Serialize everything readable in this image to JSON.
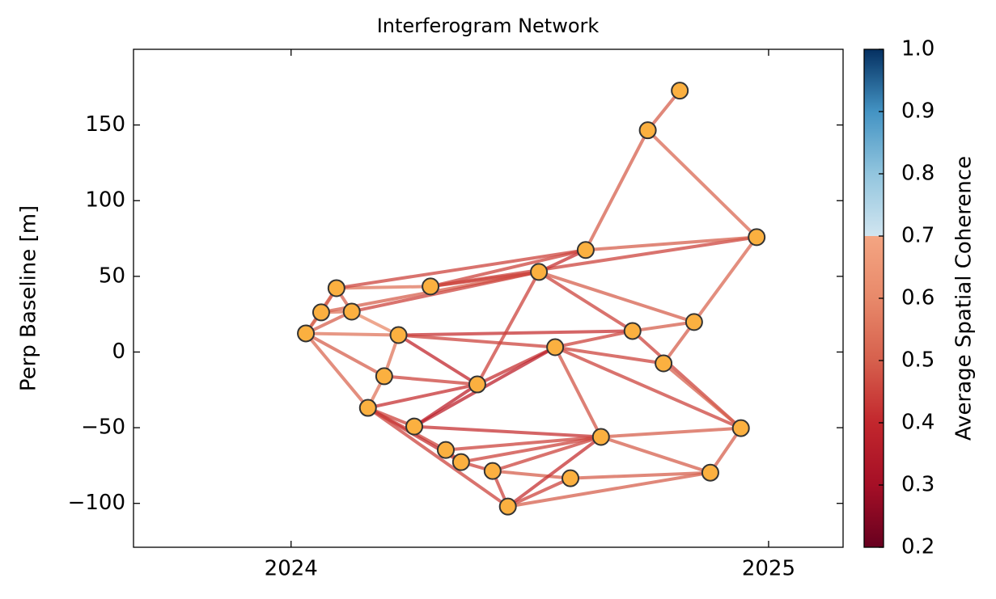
{
  "chart_data": {
    "type": "network",
    "title": "Interferogram Network",
    "y_label": "Perp Baseline [m]",
    "x": [
      2024.031,
      2024.063,
      2024.095,
      2024.127,
      2024.161,
      2024.195,
      2024.225,
      2024.258,
      2024.292,
      2024.324,
      2024.356,
      2024.39,
      2024.422,
      2024.454,
      2024.519,
      2024.553,
      2024.585,
      2024.617,
      2024.649,
      2024.715,
      2024.747,
      2024.78,
      2024.814,
      2024.844,
      2024.878,
      2024.942,
      2024.975
    ],
    "y": [
      12.3,
      26.2,
      42.2,
      26.7,
      -36.9,
      -16.0,
      11.2,
      -49.2,
      43.3,
      -64.7,
      -72.7,
      -21.4,
      -78.6,
      -102.1,
      52.9,
      3.2,
      -83.4,
      67.4,
      -56.1,
      13.9,
      146.5,
      -7.5,
      172.7,
      19.8,
      -79.7,
      -50.3,
      75.9
    ],
    "edges": [
      [
        0,
        1
      ],
      [
        0,
        2
      ],
      [
        0,
        3
      ],
      [
        0,
        6
      ],
      [
        0,
        4
      ],
      [
        0,
        5
      ],
      [
        1,
        3
      ],
      [
        1,
        2
      ],
      [
        1,
        14
      ],
      [
        3,
        14
      ],
      [
        2,
        8
      ],
      [
        2,
        17
      ],
      [
        2,
        3
      ],
      [
        3,
        6
      ],
      [
        6,
        5
      ],
      [
        6,
        19
      ],
      [
        6,
        11
      ],
      [
        6,
        15
      ],
      [
        5,
        11
      ],
      [
        4,
        5
      ],
      [
        4,
        11
      ],
      [
        4,
        7
      ],
      [
        4,
        9
      ],
      [
        4,
        10
      ],
      [
        4,
        13
      ],
      [
        8,
        14
      ],
      [
        8,
        17
      ],
      [
        8,
        26
      ],
      [
        14,
        17
      ],
      [
        14,
        11
      ],
      [
        14,
        19
      ],
      [
        14,
        23
      ],
      [
        17,
        26
      ],
      [
        17,
        20
      ],
      [
        20,
        22
      ],
      [
        20,
        26
      ],
      [
        11,
        15
      ],
      [
        7,
        15
      ],
      [
        7,
        18
      ],
      [
        7,
        11
      ],
      [
        9,
        18
      ],
      [
        10,
        18
      ],
      [
        12,
        18
      ],
      [
        9,
        10
      ],
      [
        10,
        12
      ],
      [
        12,
        13
      ],
      [
        12,
        16
      ],
      [
        13,
        16
      ],
      [
        13,
        18
      ],
      [
        13,
        24
      ],
      [
        16,
        24
      ],
      [
        18,
        25
      ],
      [
        18,
        24
      ],
      [
        15,
        19
      ],
      [
        15,
        21
      ],
      [
        15,
        25
      ],
      [
        15,
        18
      ],
      [
        19,
        23
      ],
      [
        19,
        25
      ],
      [
        21,
        23
      ],
      [
        21,
        25
      ],
      [
        23,
        26
      ],
      [
        24,
        25
      ]
    ],
    "coherence": [
      0.55,
      0.5,
      0.5,
      0.55,
      0.52,
      0.5,
      0.55,
      0.5,
      0.5,
      0.45,
      0.55,
      0.45,
      0.5,
      0.6,
      0.55,
      0.42,
      0.4,
      0.45,
      0.45,
      0.55,
      0.42,
      0.45,
      0.45,
      0.42,
      0.45,
      0.45,
      0.45,
      0.45,
      0.42,
      0.45,
      0.45,
      0.5,
      0.5,
      0.5,
      0.5,
      0.52,
      0.42,
      0.38,
      0.42,
      0.38,
      0.45,
      0.45,
      0.45,
      0.45,
      0.45,
      0.45,
      0.5,
      0.45,
      0.42,
      0.5,
      0.5,
      0.5,
      0.5,
      0.45,
      0.45,
      0.45,
      0.48,
      0.5,
      0.45,
      0.5,
      0.5,
      0.52,
      0.5
    ],
    "node_color": "#fbb040",
    "xlim": [
      2023.67,
      2025.156
    ],
    "xticks": [
      2024,
      2025
    ],
    "ylim": [
      -129,
      200
    ],
    "yticks": [
      {
        "value": -100,
        "label": "−100"
      },
      {
        "value": -50,
        "label": "−50"
      },
      0,
      50,
      100,
      150
    ],
    "colorbar": {
      "label": "Average Spatial Coherence",
      "lim": [
        0.2,
        1.0
      ],
      "ticks": [
        0.2,
        0.3,
        0.4,
        0.5,
        0.6,
        0.7,
        0.8,
        0.9,
        {
          "value": 1,
          "label": "1.0"
        }
      ],
      "stops": [
        [
          0.2,
          "#67001f"
        ],
        [
          0.3,
          "#a50f26"
        ],
        [
          0.4,
          "#c2272d"
        ],
        [
          0.5,
          "#d6604d"
        ],
        [
          0.6,
          "#e8896a"
        ],
        [
          0.7,
          "#f4a582"
        ],
        [
          0.7,
          "#d1e5f0"
        ],
        [
          0.8,
          "#92c5de"
        ],
        [
          0.9,
          "#4393c3"
        ],
        [
          1.0,
          "#053061"
        ]
      ]
    }
  }
}
